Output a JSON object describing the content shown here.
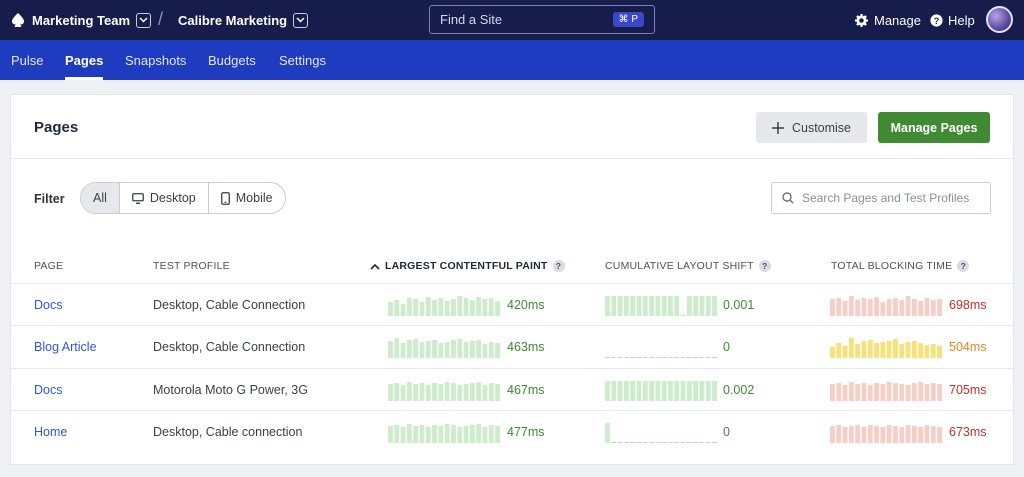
{
  "topbar": {
    "team": "Marketing Team",
    "separator": "/",
    "site": "Calibre Marketing",
    "find_placeholder": "Find a Site",
    "find_shortcut": "⌘ P",
    "manage": "Manage",
    "help": "Help"
  },
  "nav": {
    "items": [
      {
        "label": "Pulse"
      },
      {
        "label": "Pages"
      },
      {
        "label": "Snapshots"
      },
      {
        "label": "Budgets"
      },
      {
        "label": "Settings"
      }
    ],
    "active": "Pages"
  },
  "panel": {
    "title": "Pages",
    "customise_label": "Customise",
    "manage_pages_label": "Manage Pages",
    "filter_label": "Filter",
    "filters": [
      "All",
      "Desktop",
      "Mobile"
    ],
    "selected_filter": "All",
    "search_placeholder": "Search Pages and Test Profiles"
  },
  "table": {
    "columns": {
      "page": "PAGE",
      "profile": "TEST PROFILE",
      "lcp": "LARGEST CONTENTFUL PAINT",
      "cls": "CUMULATIVE LAYOUT SHIFT",
      "tbt": "TOTAL BLOCKING TIME"
    },
    "sorted_column": "lcp",
    "colors": {
      "good_bar": "#cdeccc",
      "good_text": "#3f8a32",
      "warn_bar": "#f6e27a",
      "warn_text": "#d98a1c",
      "bad_bar": "#f5cfc6",
      "bad_text": "#b8322a"
    },
    "rows": [
      {
        "page": "Docs",
        "profile": "Desktop, Cable Connection",
        "lcp": "420ms",
        "lcp_status": "good",
        "lcp_bars": [
          0.7,
          0.8,
          0.6,
          0.9,
          0.85,
          0.7,
          0.95,
          0.8,
          0.9,
          0.75,
          0.85,
          1.0,
          0.9,
          0.8,
          0.95,
          0.85,
          0.9,
          0.75
        ],
        "cls": "0.001",
        "cls_status": "good",
        "cls_bars": [
          1,
          1,
          1,
          1,
          1,
          1,
          1,
          1,
          1,
          1,
          1,
          1,
          0.08,
          1,
          1,
          1,
          1,
          1
        ],
        "tbt": "698ms",
        "tbt_status": "bad",
        "tbt_bars": [
          0.85,
          0.9,
          0.75,
          1.0,
          0.8,
          0.9,
          0.85,
          0.95,
          0.7,
          0.85,
          0.9,
          0.8,
          1.0,
          0.85,
          0.75,
          0.9,
          0.8,
          0.85
        ]
      },
      {
        "page": "Blog Article",
        "profile": "Desktop, Cable Connection",
        "lcp": "463ms",
        "lcp_status": "good",
        "lcp_bars": [
          0.85,
          1.0,
          0.75,
          0.9,
          0.95,
          0.8,
          0.85,
          0.9,
          0.75,
          0.8,
          0.9,
          0.95,
          0.8,
          0.85,
          0.9,
          0.7,
          0.8,
          0.75
        ],
        "cls": "0",
        "cls_status": "good",
        "cls_bars": [
          0,
          0,
          0,
          0,
          0,
          0,
          0,
          0,
          0,
          0,
          0,
          0,
          0,
          0,
          0,
          0,
          0,
          0
        ],
        "tbt": "504ms",
        "tbt_status": "warn",
        "tbt_bars": [
          0.55,
          0.75,
          0.6,
          1.0,
          0.7,
          0.85,
          0.9,
          0.75,
          0.8,
          0.85,
          0.95,
          0.7,
          0.8,
          0.85,
          0.75,
          0.65,
          0.7,
          0.6
        ]
      },
      {
        "page": "Docs",
        "profile": "Motorola Moto G Power, 3G",
        "lcp": "467ms",
        "lcp_status": "good",
        "lcp_bars": [
          0.85,
          0.9,
          0.8,
          0.95,
          0.85,
          0.9,
          0.8,
          0.9,
          0.85,
          0.95,
          0.9,
          0.8,
          0.85,
          0.9,
          0.95,
          0.8,
          0.9,
          0.85
        ],
        "cls": "0.002",
        "cls_status": "good",
        "cls_bars": [
          1,
          1,
          1,
          1,
          1,
          1,
          1,
          1,
          1,
          1,
          1,
          1,
          1,
          1,
          1,
          1,
          1,
          1
        ],
        "tbt": "705ms",
        "tbt_status": "bad",
        "tbt_bars": [
          0.85,
          0.9,
          0.8,
          0.95,
          0.85,
          0.9,
          0.8,
          0.9,
          0.85,
          0.95,
          0.9,
          0.85,
          0.8,
          0.9,
          0.95,
          0.85,
          0.9,
          0.85
        ]
      },
      {
        "page": "Home",
        "profile": "Desktop, Cable connection",
        "lcp": "477ms",
        "lcp_status": "good",
        "lcp_bars": [
          0.85,
          0.9,
          0.8,
          0.95,
          0.85,
          0.9,
          0.8,
          0.9,
          0.85,
          0.95,
          0.9,
          0.8,
          0.85,
          0.9,
          0.95,
          0.8,
          0.9,
          0.85
        ],
        "cls": "0",
        "cls_status": "good",
        "cls_bars": [
          1,
          0,
          0,
          0,
          0,
          0,
          0,
          0,
          0,
          0,
          0,
          0,
          0,
          0,
          0,
          0,
          0,
          0
        ],
        "tbt": "673ms",
        "tbt_status": "bad",
        "tbt_bars": [
          0.85,
          0.9,
          0.8,
          0.85,
          0.9,
          0.8,
          0.9,
          0.85,
          0.8,
          0.9,
          0.85,
          0.8,
          0.9,
          0.85,
          0.8,
          0.9,
          0.85,
          0.8
        ]
      }
    ]
  }
}
